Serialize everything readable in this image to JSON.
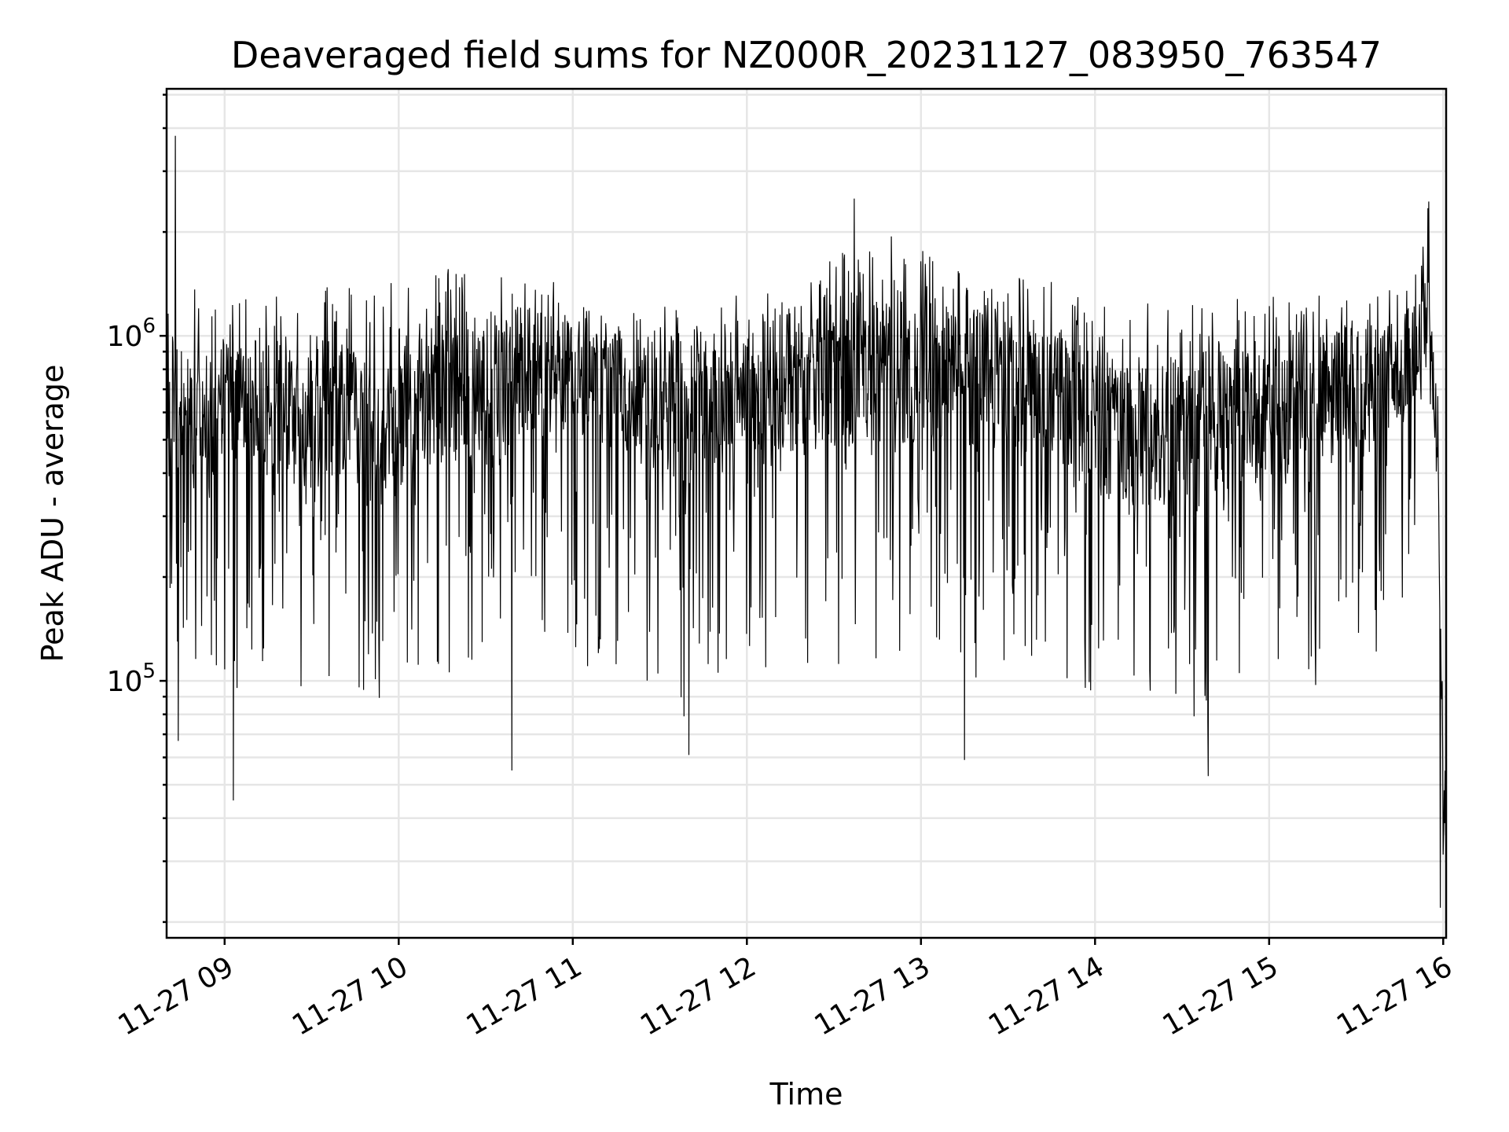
{
  "chart_data": {
    "type": "line",
    "title": "Deaveraged field sums for NZ000R_20231127_083950_763547",
    "xlabel": "Time",
    "ylabel": "Peak ADU - average",
    "x_ticks": [
      "11-27 09",
      "11-27 10",
      "11-27 11",
      "11-27 12",
      "11-27 13",
      "11-27 14",
      "11-27 15",
      "11-27 16"
    ],
    "x_tick_times": [
      "2023-11-27T09:00",
      "2023-11-27T10:00",
      "2023-11-27T11:00",
      "2023-11-27T12:00",
      "2023-11-27T13:00",
      "2023-11-27T14:00",
      "2023-11-27T15:00",
      "2023-11-27T16:00"
    ],
    "xlim": [
      "2023-11-27T08:40",
      "2023-11-27T16:01"
    ],
    "y_scale": "log",
    "y_major_ticks": [
      {
        "base": "10",
        "exp": "6",
        "value": 1000000
      },
      {
        "base": "10",
        "exp": "5",
        "value": 100000
      }
    ],
    "ylim": [
      18000,
      5200000
    ],
    "grid": true,
    "series_color": "#000000",
    "series": [
      {
        "x": [
          "2023-11-27T08:40",
          "2023-11-27T08:45",
          "2023-11-27T08:50",
          "2023-11-27T08:55",
          "2023-11-27T09:00",
          "2023-11-27T09:10",
          "2023-11-27T09:20",
          "2023-11-27T09:30",
          "2023-11-27T09:40",
          "2023-11-27T09:50",
          "2023-11-27T10:00",
          "2023-11-27T10:10",
          "2023-11-27T10:20",
          "2023-11-27T10:30",
          "2023-11-27T10:40",
          "2023-11-27T10:50",
          "2023-11-27T11:00",
          "2023-11-27T11:10",
          "2023-11-27T11:20",
          "2023-11-27T11:30",
          "2023-11-27T11:40",
          "2023-11-27T11:50",
          "2023-11-27T12:00",
          "2023-11-27T12:10",
          "2023-11-27T12:20",
          "2023-11-27T12:30",
          "2023-11-27T12:40",
          "2023-11-27T12:50",
          "2023-11-27T13:00",
          "2023-11-27T13:10",
          "2023-11-27T13:20",
          "2023-11-27T13:30",
          "2023-11-27T13:40",
          "2023-11-27T13:50",
          "2023-11-27T14:00",
          "2023-11-27T14:10",
          "2023-11-27T14:20",
          "2023-11-27T14:30",
          "2023-11-27T14:40",
          "2023-11-27T14:50",
          "2023-11-27T15:00",
          "2023-11-27T15:10",
          "2023-11-27T15:20",
          "2023-11-27T15:30",
          "2023-11-27T15:40",
          "2023-11-27T15:50",
          "2023-11-27T15:55",
          "2023-11-27T15:58",
          "2023-11-27T16:00",
          "2023-11-27T16:01"
        ],
        "median": [
          700000,
          600000,
          550000,
          520000,
          600000,
          650000,
          600000,
          580000,
          600000,
          500000,
          560000,
          650000,
          720000,
          600000,
          750000,
          800000,
          800000,
          750000,
          700000,
          650000,
          620000,
          700000,
          720000,
          700000,
          750000,
          800000,
          820000,
          800000,
          800000,
          780000,
          760000,
          740000,
          700000,
          650000,
          550000,
          520000,
          500000,
          480000,
          520000,
          560000,
          600000,
          640000,
          660000,
          680000,
          700000,
          900000,
          1200000,
          450000,
          42000,
          45000
        ],
        "upper": [
          1800000,
          1300000,
          1400000,
          1300000,
          1400000,
          1300000,
          1350000,
          1400000,
          1450000,
          1300000,
          1500000,
          1600000,
          1650000,
          1500000,
          1550000,
          1500000,
          1400000,
          1300000,
          1300000,
          1250000,
          1300000,
          1300000,
          1350000,
          1400000,
          1450000,
          1700000,
          1900000,
          2000000,
          1800000,
          1600000,
          1550000,
          1500000,
          1500000,
          1400000,
          1300000,
          1300000,
          1300000,
          1250000,
          1300000,
          1300000,
          1300000,
          1350000,
          1350000,
          1350000,
          1300000,
          1800000,
          2400000,
          800000,
          70000,
          55000
        ],
        "lower": [
          150000,
          120000,
          100000,
          110000,
          80000,
          120000,
          100000,
          90000,
          100000,
          70000,
          100000,
          110000,
          90000,
          110000,
          100000,
          130000,
          120000,
          100000,
          110000,
          80000,
          70000,
          100000,
          110000,
          100000,
          80000,
          90000,
          100000,
          110000,
          120000,
          130000,
          90000,
          110000,
          120000,
          100000,
          80000,
          85000,
          80000,
          75000,
          70000,
          90000,
          85000,
          90000,
          100000,
          100000,
          110000,
          200000,
          600000,
          200000,
          25000,
          30000
        ],
        "extremes": [
          {
            "x": "2023-11-27T08:43",
            "y": 3800000
          },
          {
            "x": "2023-11-27T08:44",
            "y": 67000
          },
          {
            "x": "2023-11-27T09:03",
            "y": 45000
          },
          {
            "x": "2023-11-27T10:39",
            "y": 55000
          },
          {
            "x": "2023-11-27T11:40",
            "y": 61000
          },
          {
            "x": "2023-11-27T12:37",
            "y": 2500000
          },
          {
            "x": "2023-11-27T13:15",
            "y": 59000
          },
          {
            "x": "2023-11-27T14:39",
            "y": 53000
          },
          {
            "x": "2023-11-27T15:55",
            "y": 2450000
          },
          {
            "x": "2023-11-27T15:59",
            "y": 22000
          }
        ]
      }
    ]
  }
}
